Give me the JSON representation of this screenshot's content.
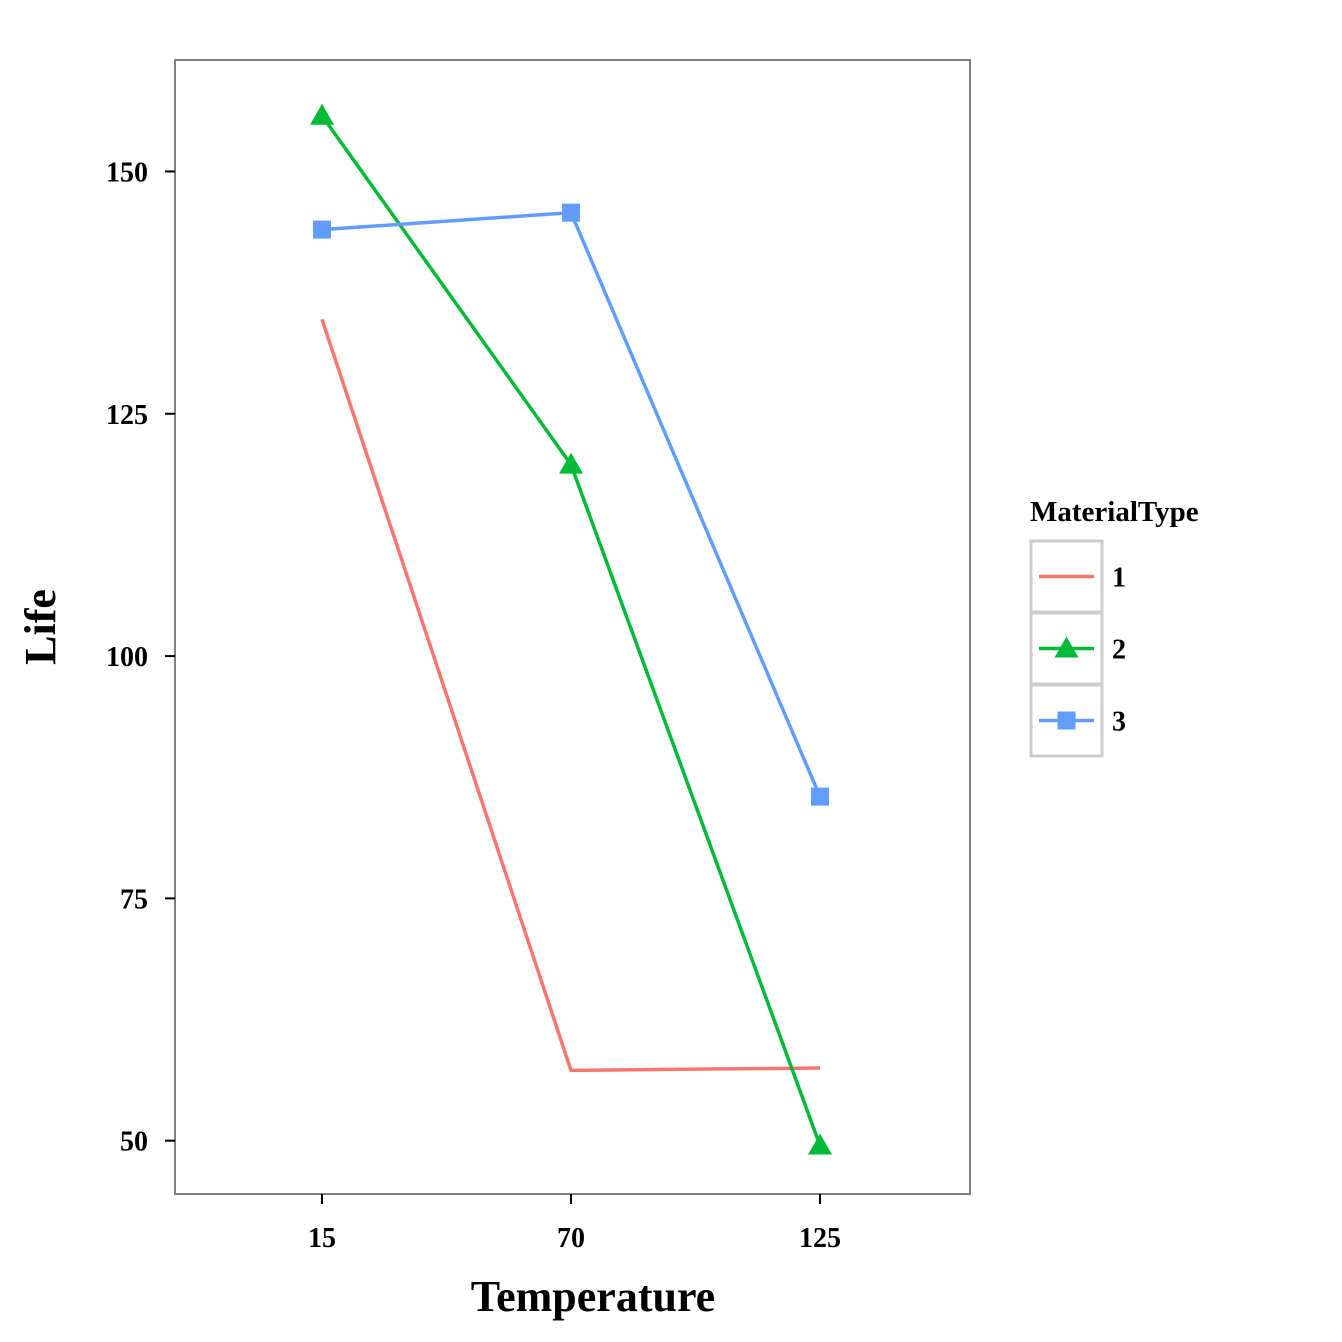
{
  "chart_data": {
    "type": "line",
    "title": "",
    "xlabel": "Temperature",
    "ylabel": "Life",
    "categories": [
      "15",
      "70",
      "125"
    ],
    "ylim": [
      44.5,
      161.5
    ],
    "yticks": [
      50,
      75,
      100,
      125,
      150
    ],
    "grid": false,
    "legend": {
      "title": "MaterialType",
      "placement": "right"
    },
    "series": [
      {
        "name": "1",
        "values": [
          134.75,
          57.25,
          57.5
        ],
        "color": "#F8766D",
        "marker": "none"
      },
      {
        "name": "2",
        "values": [
          155.75,
          119.75,
          49.5
        ],
        "color": "#00BA38",
        "marker": "triangle"
      },
      {
        "name": "3",
        "values": [
          144.0,
          145.75,
          85.5
        ],
        "color": "#619CFF",
        "marker": "square"
      }
    ]
  }
}
